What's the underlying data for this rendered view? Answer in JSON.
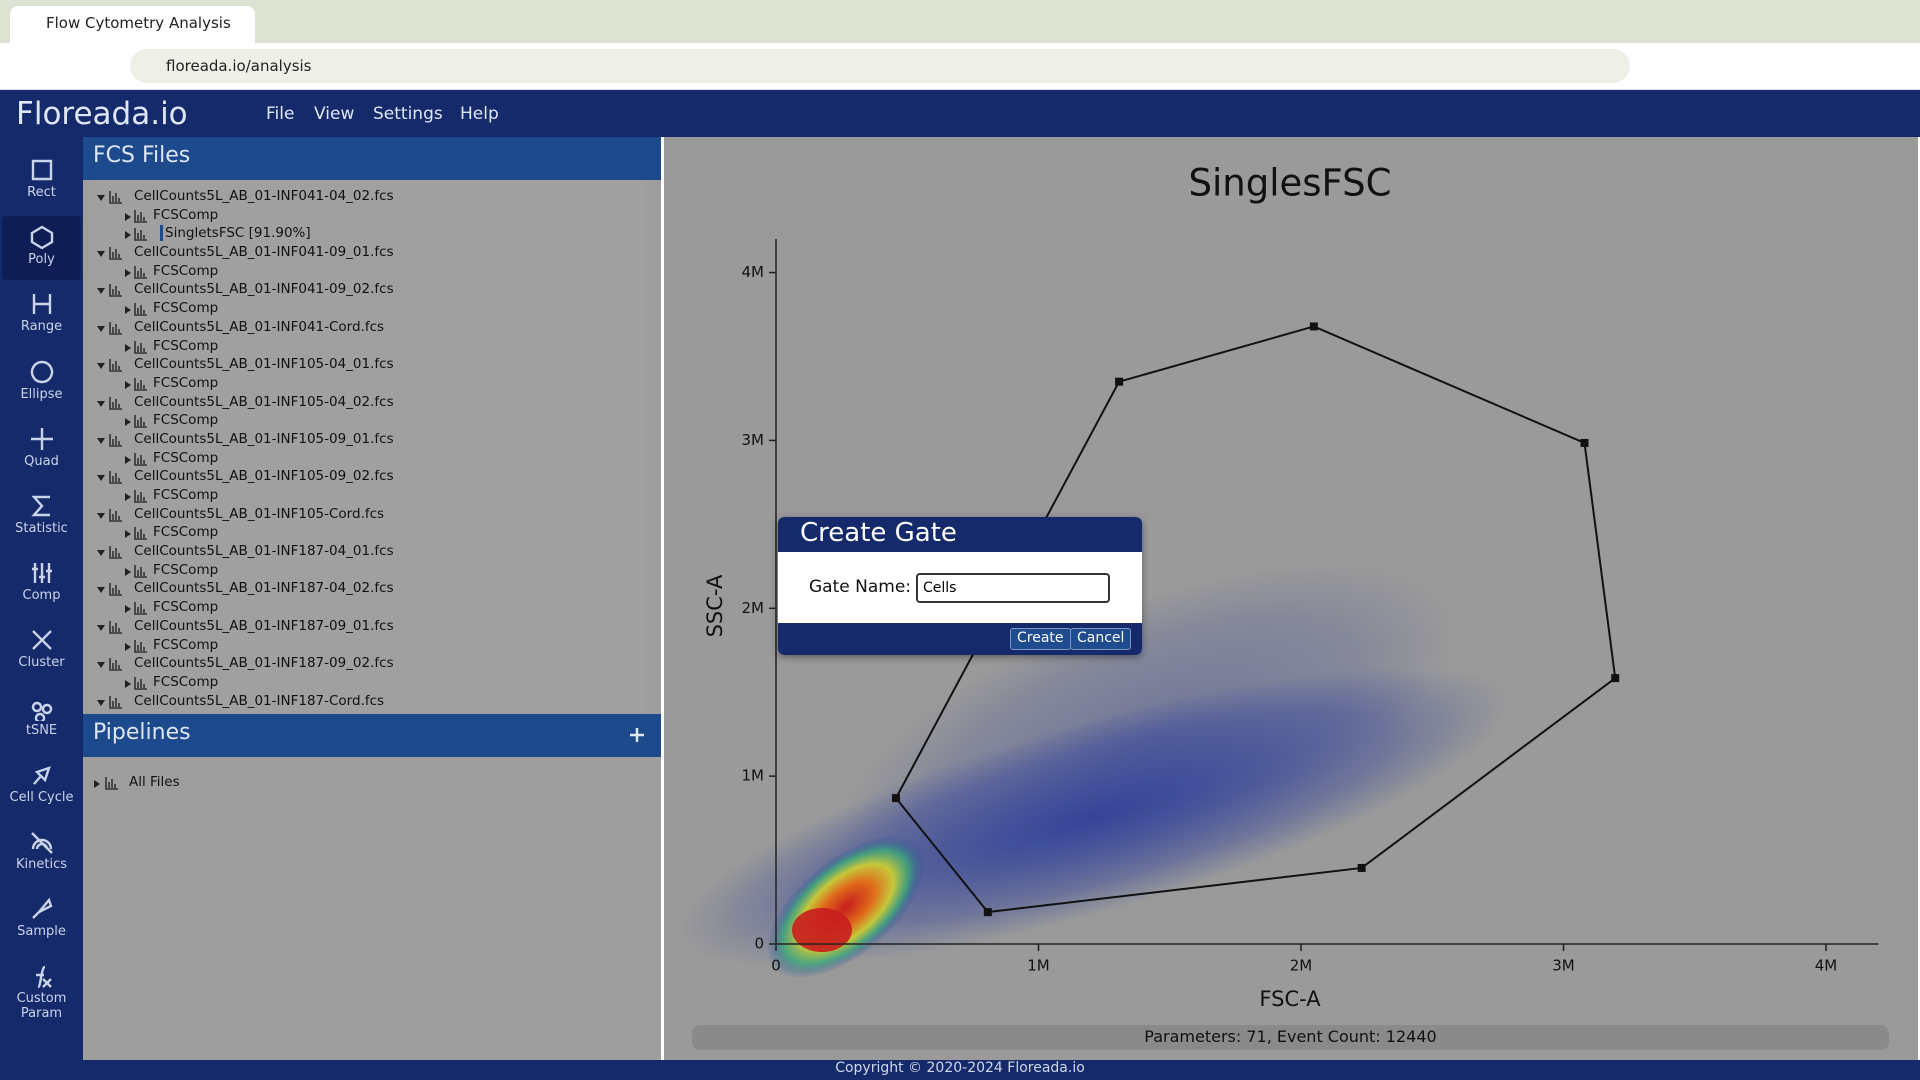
{
  "browser": {
    "tab_title": "Flow Cytometry Analysis",
    "url": "floreada.io/analysis"
  },
  "app": {
    "logo": "Floreada.io",
    "menu": [
      "File",
      "View",
      "Settings",
      "Help"
    ]
  },
  "tools": [
    "Rect",
    "Poly",
    "Range",
    "Ellipse",
    "Quad",
    "Statistic",
    "Comp",
    "Cluster",
    "tSNE",
    "Cell Cycle",
    "Kinetics",
    "Sample",
    "Custom Param"
  ],
  "files": {
    "title": "FCS Files",
    "items": [
      {
        "name": "CellCounts5L_AB_01-INF041-04_02.fcs",
        "children": [
          "FCSComp",
          "SingletsFSC [91.90%]"
        ]
      },
      {
        "name": "CellCounts5L_AB_01-INF041-09_01.fcs",
        "children": [
          "FCSComp"
        ]
      },
      {
        "name": "CellCounts5L_AB_01-INF041-09_02.fcs",
        "children": [
          "FCSComp"
        ]
      },
      {
        "name": "CellCounts5L_AB_01-INF041-Cord.fcs",
        "children": [
          "FCSComp"
        ]
      },
      {
        "name": "CellCounts5L_AB_01-INF105-04_01.fcs",
        "children": [
          "FCSComp"
        ]
      },
      {
        "name": "CellCounts5L_AB_01-INF105-04_02.fcs",
        "children": [
          "FCSComp"
        ]
      },
      {
        "name": "CellCounts5L_AB_01-INF105-09_01.fcs",
        "children": [
          "FCSComp"
        ]
      },
      {
        "name": "CellCounts5L_AB_01-INF105-09_02.fcs",
        "children": [
          "FCSComp"
        ]
      },
      {
        "name": "CellCounts5L_AB_01-INF105-Cord.fcs",
        "children": [
          "FCSComp"
        ]
      },
      {
        "name": "CellCounts5L_AB_01-INF187-04_01.fcs",
        "children": [
          "FCSComp"
        ]
      },
      {
        "name": "CellCounts5L_AB_01-INF187-04_02.fcs",
        "children": [
          "FCSComp"
        ]
      },
      {
        "name": "CellCounts5L_AB_01-INF187-09_01.fcs",
        "children": [
          "FCSComp"
        ]
      },
      {
        "name": "CellCounts5L_AB_01-INF187-09_02.fcs",
        "children": [
          "FCSComp"
        ]
      },
      {
        "name": "CellCounts5L_AB_01-INF187-Cord.fcs",
        "children": []
      }
    ]
  },
  "pipelines": {
    "title": "Pipelines",
    "items": [
      "All Files"
    ]
  },
  "chart_data": {
    "type": "scatter",
    "title": "SinglesFSC",
    "x_label": "FSC-A",
    "y_label": "SSC-A",
    "xlim": [
      0,
      4200000
    ],
    "ylim": [
      0,
      4200000
    ],
    "xticks": [
      0,
      {
        "value": 1000000,
        "label": "1M"
      },
      {
        "value": 2000000,
        "label": "2M"
      },
      {
        "value": 3000000,
        "label": "3M"
      },
      {
        "value": 4000000,
        "label": "4M"
      }
    ],
    "yticks": [
      0,
      {
        "value": 1000000,
        "label": "1M"
      },
      {
        "value": 2000000,
        "label": "2M"
      },
      {
        "value": 3000000,
        "label": "3M"
      },
      {
        "value": 4000000,
        "label": "4M"
      }
    ],
    "gate": {
      "x": [
        457000,
        807000,
        2231000,
        3197000,
        3080000,
        2049000,
        1307000
      ],
      "y": [
        869000,
        190000,
        453000,
        1584000,
        2985000,
        3679000,
        3350000
      ]
    }
  },
  "status": "Parameters: 71, Event Count: 12440",
  "dialog": {
    "title": "Create Gate",
    "label": "Gate Name:",
    "value": "Cells",
    "buttons": [
      "Create",
      "Cancel"
    ]
  },
  "footer": "Copyright © 2020-2024 Floreada.io"
}
